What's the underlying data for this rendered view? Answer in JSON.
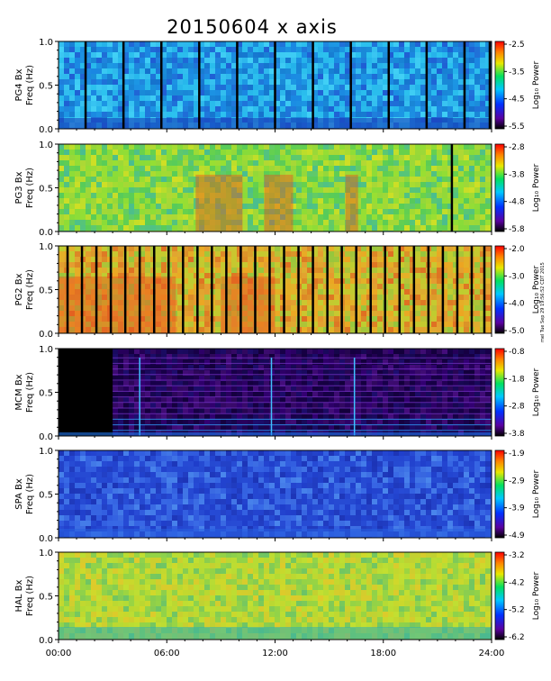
{
  "title": "20150604 x axis",
  "stamp": "mel Tue Sep 29 19:56:52 CDT 2015",
  "chart_data": {
    "type": "heatmap",
    "xlabel_ticks": [
      "00:00",
      "06:00",
      "12:00",
      "18:00",
      "24:00"
    ],
    "xlim_hours": [
      0,
      24
    ],
    "y_ticks": [
      "0.0",
      "0.5",
      "1.0"
    ],
    "ylim_hz": [
      0.0,
      1.0
    ],
    "colorbar_label": "Log₁₀ Power",
    "panels": [
      {
        "station": "PG4 Bx",
        "ylabel": "Freq (Hz)",
        "cbar_ticks": [
          "-2.5",
          "-3.5",
          "-4.5",
          "-5.5"
        ],
        "style": "blue",
        "gaps_hours": [
          1.5,
          3.6,
          5.7,
          7.8,
          9.9,
          12.0,
          14.1,
          16.2,
          18.3,
          20.4,
          22.5,
          23.9
        ]
      },
      {
        "station": "PG3 Bx",
        "ylabel": "Freq (Hz)",
        "cbar_ticks": [
          "-2.8",
          "-3.8",
          "-4.8",
          "-5.8"
        ],
        "style": "green",
        "gaps_hours": [
          21.8
        ]
      },
      {
        "station": "PG2 Bx",
        "ylabel": "Freq (Hz)",
        "cbar_ticks": [
          "-2.0",
          "-3.0",
          "-4.0",
          "-5.0"
        ],
        "style": "orange",
        "gaps_hours": [
          0.5,
          1.3,
          2.1,
          2.9,
          3.7,
          4.5,
          5.3,
          6.1,
          6.9,
          7.7,
          8.5,
          9.3,
          10.1,
          10.9,
          11.7,
          12.5,
          13.3,
          14.1,
          14.9,
          15.7,
          16.5,
          17.3,
          18.1,
          18.9,
          19.7,
          20.5,
          21.3,
          22.1,
          22.9,
          23.6
        ]
      },
      {
        "station": "MCM Bx",
        "ylabel": "Freq (Hz)",
        "cbar_ticks": [
          "-0.8",
          "-1.8",
          "-2.8",
          "-3.8"
        ],
        "style": "dark",
        "gaps_hours": []
      },
      {
        "station": "SPA Bx",
        "ylabel": "Freq (Hz)",
        "cbar_ticks": [
          "-1.9",
          "-2.9",
          "-3.9",
          "-4.9"
        ],
        "style": "deepblue",
        "gaps_hours": []
      },
      {
        "station": "HAL Bx",
        "ylabel": "Freq (Hz)",
        "cbar_ticks": [
          "-3.2",
          "-4.2",
          "-5.2",
          "-6.2"
        ],
        "style": "yellowgreen",
        "gaps_hours": []
      }
    ]
  }
}
